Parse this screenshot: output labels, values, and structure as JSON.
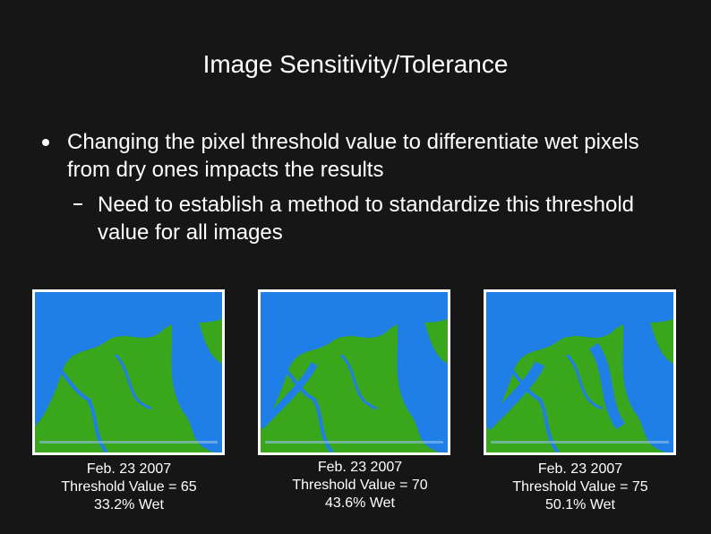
{
  "title": "Image Sensitivity/Tolerance",
  "bullets": [
    {
      "text": "Changing the pixel threshold value to differentiate wet pixels from dry ones impacts the results",
      "sub": [
        "Need to establish a method to standardize this threshold value for all images"
      ]
    }
  ],
  "images": [
    {
      "caption": [
        "Feb. 23 2007",
        "Threshold Value = 65",
        "33.2% Wet"
      ]
    },
    {
      "caption": [
        "Feb. 23 2007",
        "Threshold Value = 70",
        "43.6% Wet"
      ]
    },
    {
      "caption": [
        "Feb. 23 2007",
        "Threshold Value = 75",
        "50.1% Wet"
      ]
    }
  ]
}
